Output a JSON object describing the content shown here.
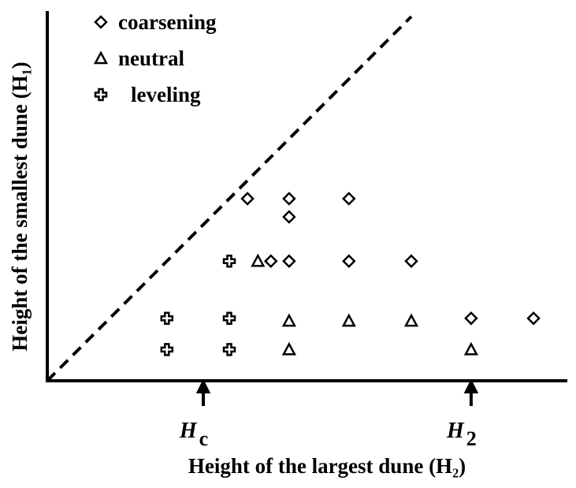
{
  "chart_data": {
    "type": "scatter",
    "x_label": "Height of the largest dune (H₂)",
    "y_label": "Height of the smallest dune (H₁)",
    "xlim": [
      0,
      10
    ],
    "ylim": [
      0,
      7
    ],
    "xticks": [
      {
        "value": 3,
        "label": "H",
        "sub": "c"
      },
      {
        "value": 8.15,
        "label": "H",
        "sub": "2"
      }
    ],
    "diagonal": true,
    "legend": "upper left",
    "series": [
      {
        "name": "coarsening",
        "marker": "diamond",
        "color": "#000000",
        "x": [
          3.85,
          4.65,
          5.8,
          4.65,
          4.3,
          4.65,
          5.8,
          7,
          8.15,
          9.35
        ],
        "values": [
          3.5,
          3.5,
          3.5,
          3.15,
          2.3,
          2.3,
          2.3,
          2.3,
          1.2,
          1.2
        ]
      },
      {
        "name": "neutral",
        "marker": "triangle",
        "color": "#000000",
        "x": [
          4.05,
          4.65,
          5.8,
          7,
          4.65,
          8.15
        ],
        "values": [
          2.3,
          1.15,
          1.15,
          1.15,
          0.6,
          0.6
        ]
      },
      {
        "name": "leveling",
        "marker": "cross",
        "color": "#000000",
        "x": [
          3.5,
          2.3,
          3.5,
          2.3,
          3.5
        ],
        "values": [
          2.3,
          1.2,
          1.2,
          0.6,
          0.6
        ]
      }
    ]
  }
}
